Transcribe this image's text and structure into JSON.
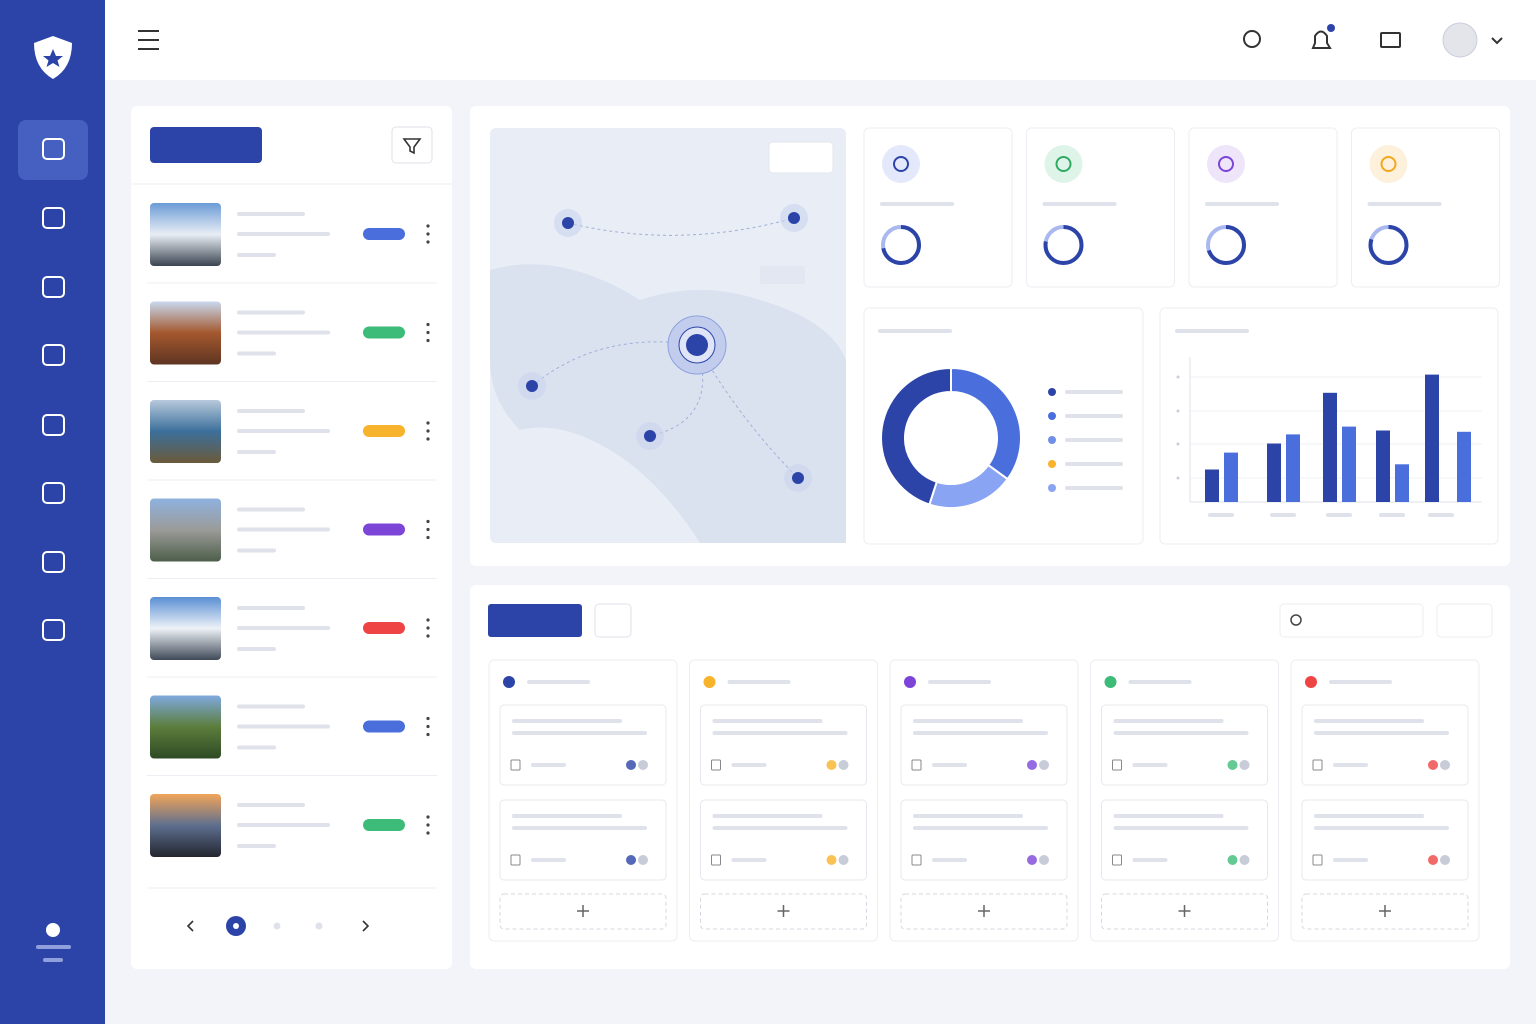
{
  "chart_data": [
    {
      "type": "pie",
      "categories": [
        null,
        null,
        null
      ],
      "values": [
        35,
        20,
        45
      ],
      "colors": [
        "#4a6fdc",
        "#88a4f2",
        "#2c44a8"
      ]
    },
    {
      "type": "bar",
      "categories": [
        null,
        null,
        null,
        null,
        null
      ],
      "ylim": [
        0,
        100
      ],
      "series": [
        {
          "color": "#2c44a8",
          "values": [
            25,
            45,
            84,
            55,
            98
          ]
        },
        {
          "color": "#4a6fdc",
          "values": [
            38,
            52,
            58,
            29,
            54
          ]
        }
      ]
    }
  ],
  "kpi_progress": [
    72,
    78,
    70,
    80
  ]
}
